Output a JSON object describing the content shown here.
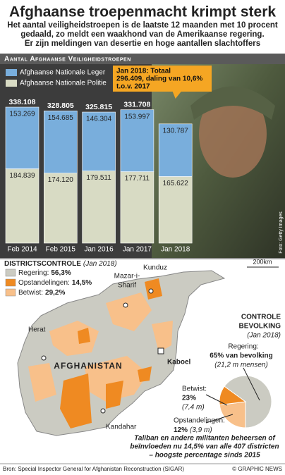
{
  "header": {
    "title": "Afghaanse troepenmacht krimpt sterk",
    "subtitle": [
      "Het aantal veiligheidstroepen is de laatste 12 maanden met 10 procent",
      "gedaald, zo meldt een waakhond van de Amerikaanse regering.",
      "Er zijn meldingen van desertie en hoge aantallen slachtoffers"
    ]
  },
  "chart_data": [
    {
      "type": "bar",
      "stacked": true,
      "title": "Aantal Afghaanse Veiligheidstroepen",
      "categories": [
        "Feb 2014",
        "Feb 2015",
        "Jan 2016",
        "Jan 2017",
        "Jan 2018"
      ],
      "series": [
        {
          "name": "Afghaanse Nationale Politie",
          "color": "#d8dbc4",
          "values": [
            184839,
            174120,
            179511,
            177711,
            165622
          ],
          "value_labels": [
            "184.839",
            "174.120",
            "179.511",
            "177.711",
            "165.622"
          ]
        },
        {
          "name": "Afghaanse Nationale Leger",
          "color": "#79aedc",
          "values": [
            153269,
            154685,
            146304,
            153997,
            130787
          ],
          "value_labels": [
            "153.269",
            "154.685",
            "146.304",
            "153.997",
            "130.787"
          ]
        }
      ],
      "totals": [
        338108,
        328805,
        325815,
        331708,
        296409
      ],
      "total_labels": [
        "338.108",
        "328.805",
        "325.815",
        "331.708"
      ],
      "annotation": [
        "Jan 2018: Totaal",
        "296.409, daling van 10,6%",
        "t.o.v. 2017"
      ],
      "annotation_color": "#f5a623",
      "credit": "Foto: Getty Images"
    },
    {
      "type": "pie",
      "title": [
        "CONTROLE",
        "BEVOLKING"
      ],
      "subtitle": "(Jan 2018)",
      "categories": [
        "Regering:",
        "Betwist:",
        "Opstandelingen:"
      ],
      "values": [
        65,
        23,
        12
      ],
      "value_labels": [
        "65% van bevolking",
        "23%",
        "12%"
      ],
      "notes": [
        "(21,2 m mensen)",
        "(7,4 m)",
        "(3,9 m)"
      ],
      "colors": [
        "#cbcbc2",
        "#f8c08a",
        "#ef8a22"
      ]
    }
  ],
  "map": {
    "title": "DISTRICTSCONTROLE",
    "subtitle": "(Jan 2018)",
    "legend": [
      {
        "name": "Regering:",
        "label": "56,3%",
        "color": "#cbcbc2"
      },
      {
        "name": "Opstandelingen:",
        "label": "14,5%",
        "color": "#ef8a22"
      },
      {
        "name": "Betwist:",
        "label": "29,2%",
        "color": "#f8c08a"
      }
    ],
    "scale": "200km",
    "country": "AFGHANISTAN",
    "cities": [
      "Herat",
      "Mazar-i-",
      "Sharif",
      "Kunduz",
      "Kaboel",
      "Kandahar"
    ],
    "note": [
      "Taliban en andere militanten beheersen of",
      "beïnvloeden nu 14,5% van alle 407 districten",
      "– hoogste percentage sinds 2015"
    ]
  },
  "footer": {
    "source": "Bron: Special Inspector General for Afghanistan Reconstruction (SIGAR)",
    "credit": "© GRAPHIC NEWS"
  }
}
